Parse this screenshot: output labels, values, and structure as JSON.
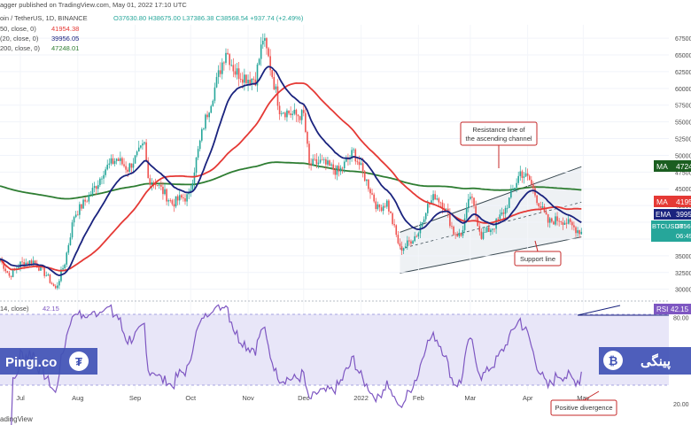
{
  "header": {
    "title": "agger published on TradingView.com, May 01, 2022 17:10 UTC",
    "symbol": "oin / TetherUS, 1D, BINANCE",
    "ohlc": "O37630.80  H38675.00  L37386.38  C38568.54  +937.74 (+2.49%)",
    "ma50_label": "50, close, 0)",
    "ma50_value": "41954.38",
    "ema20_label": "(20, close, 0)",
    "ema20_value": "39956.05",
    "ma200_label": "200, close, 0)",
    "ma200_value": "47248.01",
    "rsi_label": "14, close)",
    "rsi_value": "42.15"
  },
  "badges": {
    "ma200": "MA",
    "ma200_value": "4724",
    "ma50": "MA",
    "ma50_value": "4195",
    "ema": "EMA",
    "ema_value": "3995",
    "symbol": "BTCUSDT",
    "price": "3856",
    "countdown": "06:49",
    "rsi": "RSI",
    "rsi_value": "42.15"
  },
  "annotations": {
    "resistance": [
      "Resistance line of",
      "the ascending channel"
    ],
    "support": "Support line",
    "divergence": "Positive divergence"
  },
  "watermark": {
    "left": "Pingi.co",
    "right": "پینگی"
  },
  "footer": "adingView",
  "colors": {
    "bull": "#26a69a",
    "bear": "#ef5350",
    "ema": "#1a237e",
    "ma50": "#e53935",
    "ma200": "#2e7d32",
    "rsi": "#7e57c2",
    "rsi_band": "#e8e6f8",
    "channel": "#eef1f4",
    "annotation": "#c62828"
  },
  "chart_data": [
    {
      "type": "candlestick",
      "pair": "BTC/USDT",
      "interval": "1D",
      "x_tick_labels": [
        "Jul",
        "Aug",
        "Sep",
        "Oct",
        "Nov",
        "Dec",
        "2022",
        "Feb",
        "Mar",
        "Apr",
        "May"
      ],
      "y_tick_labels": [
        "67500.00",
        "65000.00",
        "62500.00",
        "60000.00",
        "57500.00",
        "55000.00",
        "52500.00",
        "50000.00",
        "47500.00",
        "45000.00",
        "42500.00",
        "40000.00",
        "37500.00",
        "35000.00",
        "32500.00",
        "30000.00"
      ],
      "ylim": [
        28500,
        69500
      ],
      "series": [
        {
          "name": "MA 50",
          "last": 41954.38
        },
        {
          "name": "EMA 20",
          "last": 39956.05
        },
        {
          "name": "MA 200",
          "last": 47248.01
        }
      ],
      "close_path": [
        [
          "Jun 20",
          34500
        ],
        [
          "Jun 25",
          32000
        ],
        [
          "Jul 1",
          33800
        ],
        [
          "Jul 8",
          34200
        ],
        [
          "Jul 15",
          32100
        ],
        [
          "Jul 20",
          30000
        ],
        [
          "Jul 25",
          34000
        ],
        [
          "Jul 30",
          41000
        ],
        [
          "Aug 6",
          43500
        ],
        [
          "Aug 12",
          46000
        ],
        [
          "Aug 15",
          47800
        ],
        [
          "Aug 22",
          49500
        ],
        [
          "Aug 28",
          48000
        ],
        [
          "Sep 6",
          51500
        ],
        [
          "Sep 8",
          46500
        ],
        [
          "Sep 12",
          46000
        ],
        [
          "Sep 21",
          42800
        ],
        [
          "Sep 25",
          43500
        ],
        [
          "Sep 30",
          43800
        ],
        [
          "Oct 3",
          48000
        ],
        [
          "Oct 8",
          54500
        ],
        [
          "Oct 15",
          61000
        ],
        [
          "Oct 20",
          65800
        ],
        [
          "Oct 25",
          62500
        ],
        [
          "Nov 1",
          61500
        ],
        [
          "Nov 5",
          61500
        ],
        [
          "Nov 9",
          67500
        ],
        [
          "Nov 12",
          64500
        ],
        [
          "Nov 18",
          57000
        ],
        [
          "Nov 26",
          56000
        ],
        [
          "Dec 1",
          56000
        ],
        [
          "Dec 4",
          48500
        ],
        [
          "Dec 10",
          49000
        ],
        [
          "Dec 20",
          47500
        ],
        [
          "Dec 28",
          50500
        ],
        [
          "Jan 1",
          48000
        ],
        [
          "Jan 5",
          45500
        ],
        [
          "Jan 10",
          42000
        ],
        [
          "Jan 15",
          43000
        ],
        [
          "Jan 22",
          36000
        ],
        [
          "Jan 25",
          36500
        ],
        [
          "Feb 1",
          38500
        ],
        [
          "Feb 5",
          42000
        ],
        [
          "Feb 10",
          44000
        ],
        [
          "Feb 15",
          42500
        ],
        [
          "Feb 20",
          38500
        ],
        [
          "Feb 24",
          38000
        ],
        [
          "Mar 1",
          44000
        ],
        [
          "Mar 7",
          38000
        ],
        [
          "Mar 14",
          39500
        ],
        [
          "Mar 20",
          42000
        ],
        [
          "Mar 28",
          47500
        ],
        [
          "Apr 2",
          46300
        ],
        [
          "Apr 6",
          43500
        ],
        [
          "Apr 12",
          40000
        ],
        [
          "Apr 18",
          40500
        ],
        [
          "Apr 22",
          40000
        ],
        [
          "Apr 27",
          39000
        ],
        [
          "Apr 30",
          38568
        ]
      ],
      "channel": {
        "resistance": [
          [
            "Jan 22",
            38500
          ],
          [
            "Apr 30",
            48300
          ]
        ],
        "support": [
          [
            "Jan 22",
            32400
          ],
          [
            "Apr 30",
            37800
          ]
        ],
        "midline": [
          [
            "Jan 22",
            36000
          ],
          [
            "Apr 30",
            43000
          ]
        ]
      }
    },
    {
      "type": "line",
      "name": "RSI 14",
      "ylim": [
        10,
        90
      ],
      "y_tick_labels": [
        "80.00",
        "20.00"
      ],
      "band": [
        30,
        70
      ],
      "last": 42.15
    }
  ]
}
